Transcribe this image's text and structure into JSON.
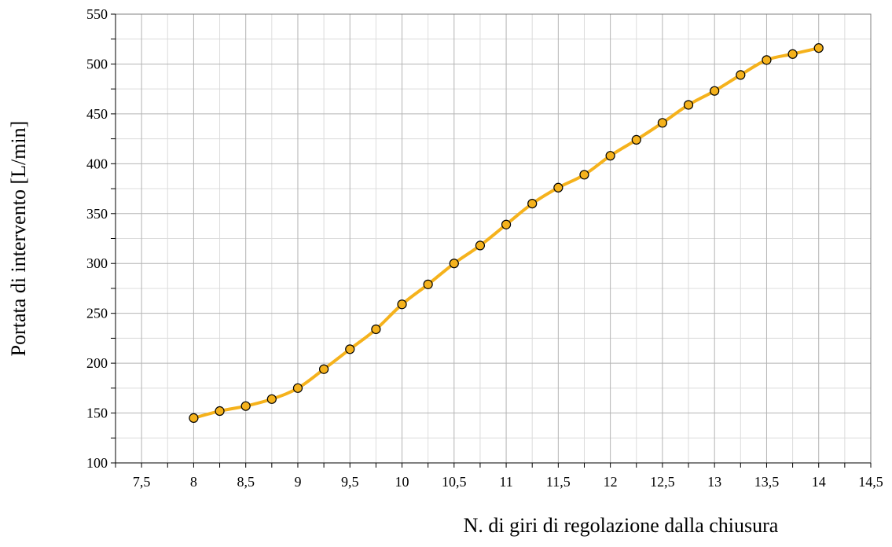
{
  "chart_data": {
    "type": "line",
    "xlabel": "N. di giri di regolazione dalla chiusura",
    "ylabel": "Portata di intervento [L/min]",
    "xlim": [
      7.25,
      14.5
    ],
    "ylim": [
      100,
      550
    ],
    "x_major_step": 0.5,
    "x_minor_step": 0.25,
    "y_major_step": 50,
    "y_minor_step": 25,
    "x_tick_labels": [
      "7,5",
      "8",
      "8,5",
      "9",
      "9,5",
      "10",
      "10,5",
      "11",
      "11,5",
      "12",
      "12,5",
      "13",
      "13,5",
      "14",
      "14,5"
    ],
    "x_tick_values": [
      7.5,
      8,
      8.5,
      9,
      9.5,
      10,
      10.5,
      11,
      11.5,
      12,
      12.5,
      13,
      13.5,
      14,
      14.5
    ],
    "y_tick_labels": [
      "100",
      "150",
      "200",
      "250",
      "300",
      "350",
      "400",
      "450",
      "500",
      "550"
    ],
    "y_tick_values": [
      100,
      150,
      200,
      250,
      300,
      350,
      400,
      450,
      500,
      550
    ],
    "grid": true,
    "legend": "none",
    "line_color": "#F5B21C",
    "marker_fill": "#F5B21C",
    "marker_stroke": "#000000",
    "series": [
      {
        "x": [
          8,
          8.25,
          8.5,
          8.75,
          9,
          9.25,
          9.5,
          9.75,
          10,
          10.25,
          10.5,
          10.75,
          11,
          11.25,
          11.5,
          11.75,
          12,
          12.25,
          12.5,
          12.75,
          13,
          13.25,
          13.5,
          13.75,
          14
        ],
        "y": [
          145,
          152,
          157,
          164,
          175,
          194,
          214,
          234,
          259,
          279,
          300,
          318,
          339,
          360,
          376,
          389,
          408,
          424,
          441,
          459,
          473,
          489,
          504,
          510,
          516
        ]
      }
    ]
  }
}
